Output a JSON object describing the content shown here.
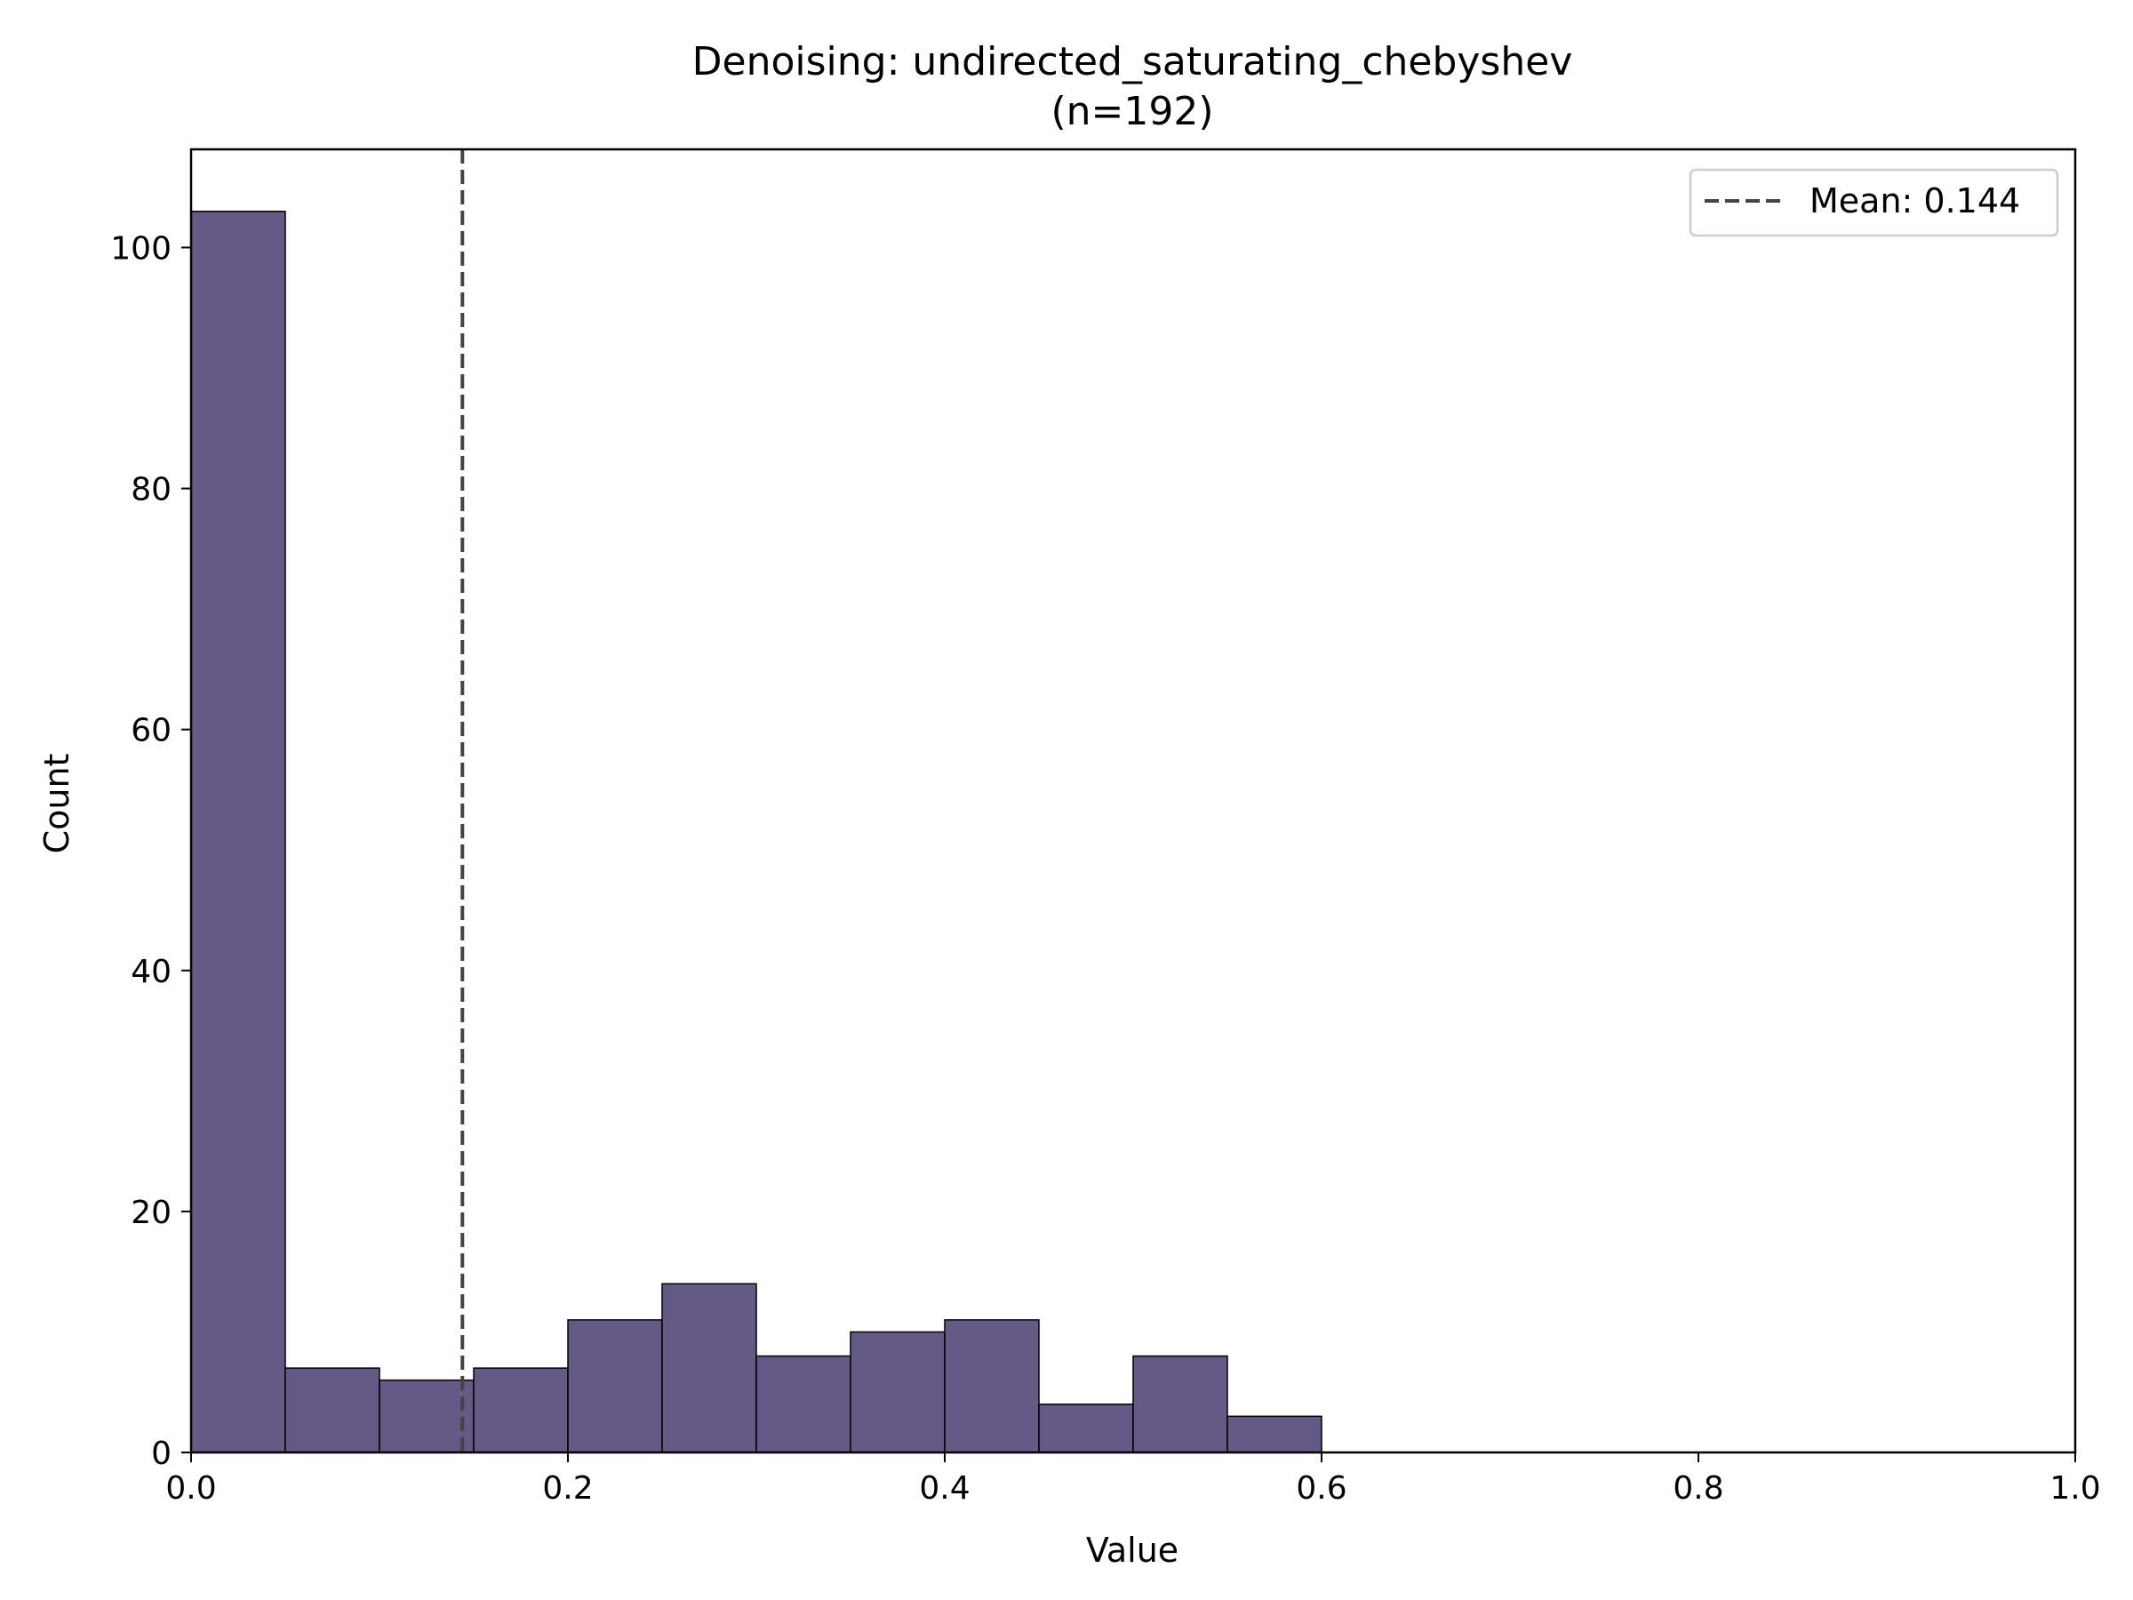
{
  "chart_data": {
    "type": "histogram",
    "title": "Denoising: undirected_saturating_chebyshev",
    "subtitle": "(n=192)",
    "xlabel": "Value",
    "ylabel": "Count",
    "xlim": [
      0.0,
      1.0
    ],
    "ylim": [
      0,
      108.15
    ],
    "x_ticks": [
      "0.0",
      "0.2",
      "0.4",
      "0.6",
      "0.8",
      "1.0"
    ],
    "y_ticks": [
      "0",
      "20",
      "40",
      "60",
      "80",
      "100"
    ],
    "bin_width": 0.05,
    "bins": [
      {
        "start": 0.0,
        "end": 0.05,
        "count": 103
      },
      {
        "start": 0.05,
        "end": 0.1,
        "count": 7
      },
      {
        "start": 0.1,
        "end": 0.15,
        "count": 6
      },
      {
        "start": 0.15,
        "end": 0.2,
        "count": 7
      },
      {
        "start": 0.2,
        "end": 0.25,
        "count": 11
      },
      {
        "start": 0.25,
        "end": 0.3,
        "count": 14
      },
      {
        "start": 0.3,
        "end": 0.35,
        "count": 8
      },
      {
        "start": 0.35,
        "end": 0.4,
        "count": 10
      },
      {
        "start": 0.4,
        "end": 0.45,
        "count": 11
      },
      {
        "start": 0.45,
        "end": 0.5,
        "count": 4
      },
      {
        "start": 0.5,
        "end": 0.55,
        "count": 8
      },
      {
        "start": 0.55,
        "end": 0.6,
        "count": 3
      }
    ],
    "mean_line": {
      "value": 0.144,
      "label": "Mean: 0.144",
      "style": "dashed",
      "color": "#444444"
    },
    "bar_color": "#655985",
    "bar_edge_color": "#000000",
    "legend_position": "top-right",
    "grid": false
  }
}
